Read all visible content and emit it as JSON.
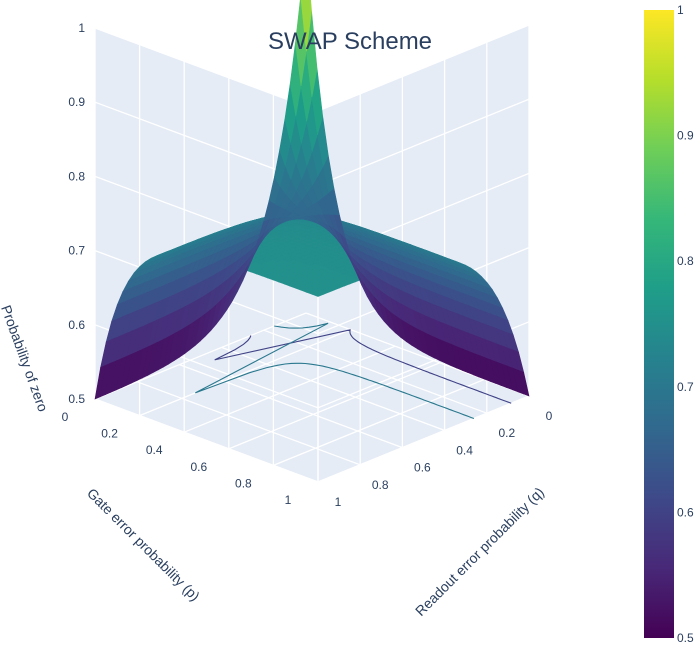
{
  "chart_data": {
    "type": "surface",
    "title": "SWAP Scheme",
    "x_axis": {
      "label": "Gate error probability (p)",
      "range": [
        0,
        1
      ],
      "ticks": [
        "0",
        "0.2",
        "0.4",
        "0.6",
        "0.8",
        "1"
      ]
    },
    "y_axis": {
      "label": "Readout error probability (q)",
      "range": [
        0,
        1
      ],
      "ticks": [
        "0",
        "0.2",
        "0.4",
        "0.6",
        "0.8",
        "1"
      ]
    },
    "z_axis": {
      "label": "Probability of zero",
      "range": [
        0.5,
        1
      ],
      "ticks": [
        "0.5",
        "0.6",
        "0.7",
        "0.8",
        "0.9",
        "1"
      ]
    },
    "colorbar": {
      "range": [
        0.5,
        1
      ],
      "ticks": [
        "0.5",
        "0.6",
        "0.7",
        "0.8",
        "0.9",
        "1"
      ],
      "colorscale": "Viridis"
    },
    "corner_values": [
      {
        "p": 0,
        "q": 0,
        "z": 1.0
      },
      {
        "p": 0,
        "q": 1,
        "z": 0.5
      },
      {
        "p": 1,
        "q": 0,
        "z": 0.5
      },
      {
        "p": 1,
        "q": 1,
        "z": 0.75
      }
    ],
    "contour_levels": [
      0.6,
      0.7
    ]
  }
}
